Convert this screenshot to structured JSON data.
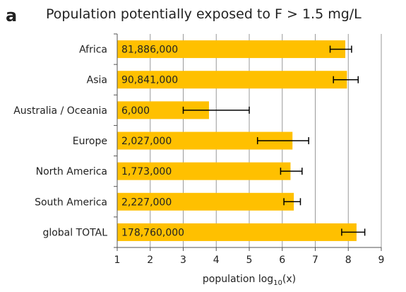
{
  "panel_label": "a",
  "chart_data": {
    "type": "bar",
    "orientation": "horizontal",
    "title": "Population potentially exposed to F > 1.5 mg/L",
    "xlabel_main": "population log",
    "xlabel_sub": "10",
    "xlabel_tail": "(x)",
    "xlim": [
      1,
      9
    ],
    "xticks": [
      "1",
      "2",
      "3",
      "4",
      "5",
      "6",
      "7",
      "8",
      "9"
    ],
    "grid": "vertical",
    "categories": [
      "Africa",
      "Asia",
      "Australia / Oceania",
      "Europe",
      "North America",
      "South America",
      "global TOTAL"
    ],
    "values": [
      7.91,
      7.96,
      3.78,
      6.31,
      6.25,
      6.35,
      8.25
    ],
    "error_low": [
      7.45,
      7.55,
      3.0,
      5.25,
      5.95,
      6.05,
      7.8
    ],
    "error_high": [
      8.1,
      8.3,
      5.0,
      6.8,
      6.6,
      6.55,
      8.5
    ],
    "data_labels": [
      "81,886,000",
      "90,841,000",
      "6,000",
      "2,027,000",
      "1,773,000",
      "2,227,000",
      "178,760,000"
    ],
    "bar_color": "#ffc000",
    "grid_color": "#999999",
    "error_color": "#000000"
  }
}
